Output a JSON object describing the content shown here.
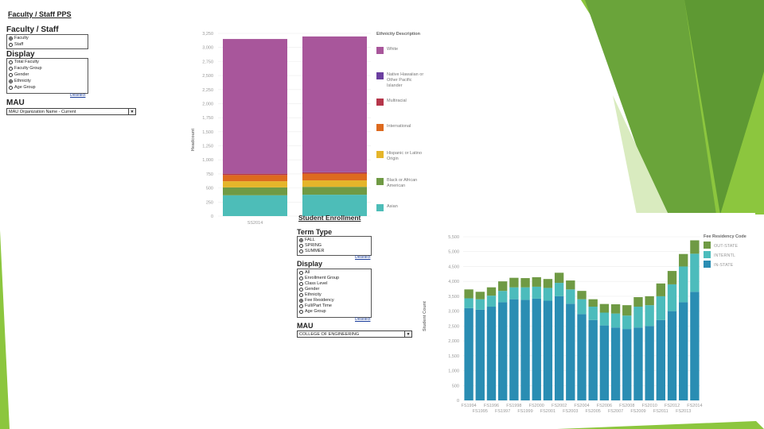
{
  "faculty_panel": {
    "title": "Faculty / Staff PPS",
    "group_label": "Faculty / Staff",
    "group_options": [
      {
        "label": "Faculty",
        "selected": true
      },
      {
        "label": "Staff",
        "selected": false
      }
    ],
    "display_label": "Display",
    "display_options": [
      {
        "label": "Total Faculty",
        "selected": false
      },
      {
        "label": "Faculty Group",
        "selected": false
      },
      {
        "label": "Gender",
        "selected": false
      },
      {
        "label": "Ethnicity",
        "selected": true
      },
      {
        "label": "Age Group",
        "selected": false
      }
    ],
    "deselect": "Deselect",
    "mau_label": "MAU",
    "mau_value": "MAU Organization Name - Current"
  },
  "student_panel": {
    "title": "Student Enrollment",
    "term_label": "Term Type",
    "term_options": [
      {
        "label": "FALL",
        "selected": true
      },
      {
        "label": "SPRING",
        "selected": false
      },
      {
        "label": "SUMMER",
        "selected": false
      }
    ],
    "deselect1": "Deselect",
    "display_label": "Display",
    "display_options": [
      {
        "label": "All",
        "selected": false
      },
      {
        "label": "Enrollment Group",
        "selected": false
      },
      {
        "label": "Class Level",
        "selected": false
      },
      {
        "label": "Gender",
        "selected": false
      },
      {
        "label": "Ethnicity",
        "selected": false
      },
      {
        "label": "Fee Residency",
        "selected": true
      },
      {
        "label": "Full/Part Time",
        "selected": false
      },
      {
        "label": "Age Group",
        "selected": false
      }
    ],
    "deselect2": "Deselect",
    "mau_label": "MAU",
    "mau_value": "COLLEGE OF ENGINEERING"
  },
  "colors": {
    "White": "#a8569b",
    "Native Hawaiian or Other Pacific Islander": "#6b3fa0",
    "Multiracial": "#b5364a",
    "International": "#dd6a1e",
    "Hispanic or Latino Origin": "#e5b52a",
    "Black or African American": "#6f9a44",
    "Asian": "#4dbdb8",
    "OUT-STATE": "#6f9a44",
    "INTERNTL": "#4cbcbc",
    "IN-STATE": "#2a8db3",
    "green_deco_1": "#8cc63e",
    "green_deco_2": "#6aa43a"
  },
  "chart_data": [
    {
      "type": "bar",
      "stacked": true,
      "categories": [
        "SS2014",
        ""
      ],
      "ylabel": "Headcount",
      "ylim": [
        0,
        3250
      ],
      "yticks": [
        "0",
        "250",
        "500",
        "750",
        "1,000",
        "1,250",
        "1,500",
        "1,750",
        "2,000",
        "2,250",
        "2,500",
        "2,750",
        "3,000",
        "3,250"
      ],
      "legend_title": "Ethnicity Description",
      "series": [
        {
          "name": "Asian",
          "values": [
            370,
            380
          ]
        },
        {
          "name": "Black or African American",
          "values": [
            140,
            140
          ]
        },
        {
          "name": "Hispanic or Latino Origin",
          "values": [
            110,
            115
          ]
        },
        {
          "name": "International",
          "values": [
            110,
            120
          ]
        },
        {
          "name": "Multiracial",
          "values": [
            25,
            25
          ]
        },
        {
          "name": "Native Hawaiian or Other Pacific Islander",
          "values": [
            5,
            5
          ]
        },
        {
          "name": "White",
          "values": [
            2390,
            2410
          ]
        }
      ]
    },
    {
      "type": "bar",
      "stacked": true,
      "ylabel": "Student Count",
      "ylim": [
        0,
        5500
      ],
      "yticks": [
        "0",
        "500",
        "1,000",
        "1,500",
        "2,000",
        "2,500",
        "3,000",
        "3,500",
        "4,000",
        "4,500",
        "5,000",
        "5,500"
      ],
      "categories": [
        "FS1994",
        "FS1995",
        "FS1996",
        "FS1997",
        "FS1998",
        "FS1999",
        "FS2000",
        "FS2001",
        "FS2002",
        "FS2003",
        "FS2004",
        "FS2005",
        "FS2006",
        "FS2007",
        "FS2008",
        "FS2009",
        "FS2010",
        "FS2011",
        "FS2012",
        "FS2013",
        "FS2014"
      ],
      "legend_title": "Fee Residency Code",
      "series": [
        {
          "name": "IN-STATE",
          "values": [
            3100,
            3050,
            3150,
            3300,
            3400,
            3380,
            3420,
            3350,
            3500,
            3250,
            2900,
            2700,
            2520,
            2450,
            2400,
            2450,
            2500,
            2700,
            3000,
            3300,
            3650
          ]
        },
        {
          "name": "INTERNTL",
          "values": [
            330,
            350,
            370,
            380,
            400,
            420,
            400,
            430,
            450,
            480,
            500,
            450,
            430,
            470,
            450,
            700,
            700,
            800,
            900,
            1200,
            1280
          ]
        },
        {
          "name": "OUT-STATE",
          "values": [
            300,
            250,
            280,
            320,
            320,
            310,
            320,
            300,
            340,
            300,
            280,
            250,
            290,
            310,
            350,
            320,
            300,
            430,
            450,
            420,
            450
          ]
        }
      ]
    }
  ]
}
